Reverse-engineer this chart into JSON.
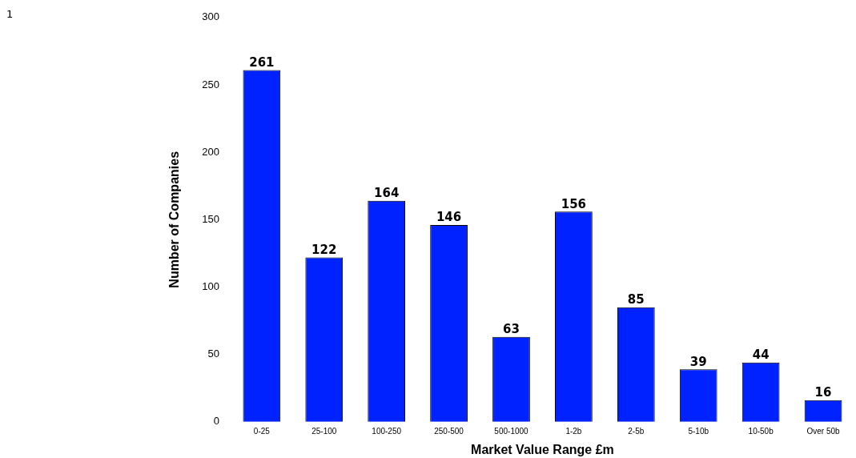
{
  "chart_data": {
    "type": "bar",
    "xlabel": "Market Value Range £m",
    "ylabel": "Number of Companies",
    "annotations": [
      "1"
    ],
    "categories": [
      "0-25",
      "25-100",
      "100-250",
      "250-500",
      "500-1000",
      "1-2b",
      "2-5b",
      "5-10b",
      "10-50b",
      "Over 50b"
    ],
    "values": [
      261,
      122,
      164,
      146,
      63,
      156,
      85,
      39,
      44,
      16
    ],
    "color": "#0022ff",
    "ylim": [
      0,
      300
    ],
    "yticks": [
      0,
      50,
      100,
      150,
      200,
      250,
      300
    ],
    "grid": false,
    "legend": false,
    "data_labels": true
  }
}
